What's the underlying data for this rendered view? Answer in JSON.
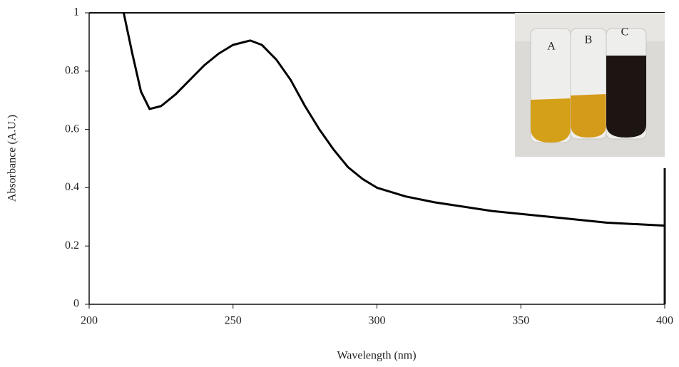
{
  "chart_data": {
    "type": "line",
    "x_label": "Wavelength (nm)",
    "y_label": "Absorbance (A.U.)",
    "x": [
      212,
      215,
      218,
      221,
      225,
      230,
      235,
      240,
      245,
      250,
      256,
      260,
      265,
      270,
      275,
      280,
      285,
      290,
      295,
      300,
      310,
      320,
      340,
      360,
      380,
      400
    ],
    "series": [
      {
        "color": "#000000",
        "values": [
          1.0,
          0.86,
          0.73,
          0.67,
          0.68,
          0.72,
          0.77,
          0.82,
          0.86,
          0.89,
          0.905,
          0.89,
          0.84,
          0.77,
          0.68,
          0.6,
          0.53,
          0.47,
          0.43,
          0.4,
          0.37,
          0.35,
          0.32,
          0.3,
          0.28,
          0.27
        ]
      }
    ],
    "xlim": [
      200,
      400
    ],
    "xticks": [
      200,
      250,
      300,
      350,
      400
    ],
    "ylim": [
      0,
      1
    ],
    "yticks": [
      0,
      0.2,
      0.4,
      0.6,
      0.8,
      1
    ],
    "annotations": [
      "A",
      "B",
      "C"
    ]
  }
}
